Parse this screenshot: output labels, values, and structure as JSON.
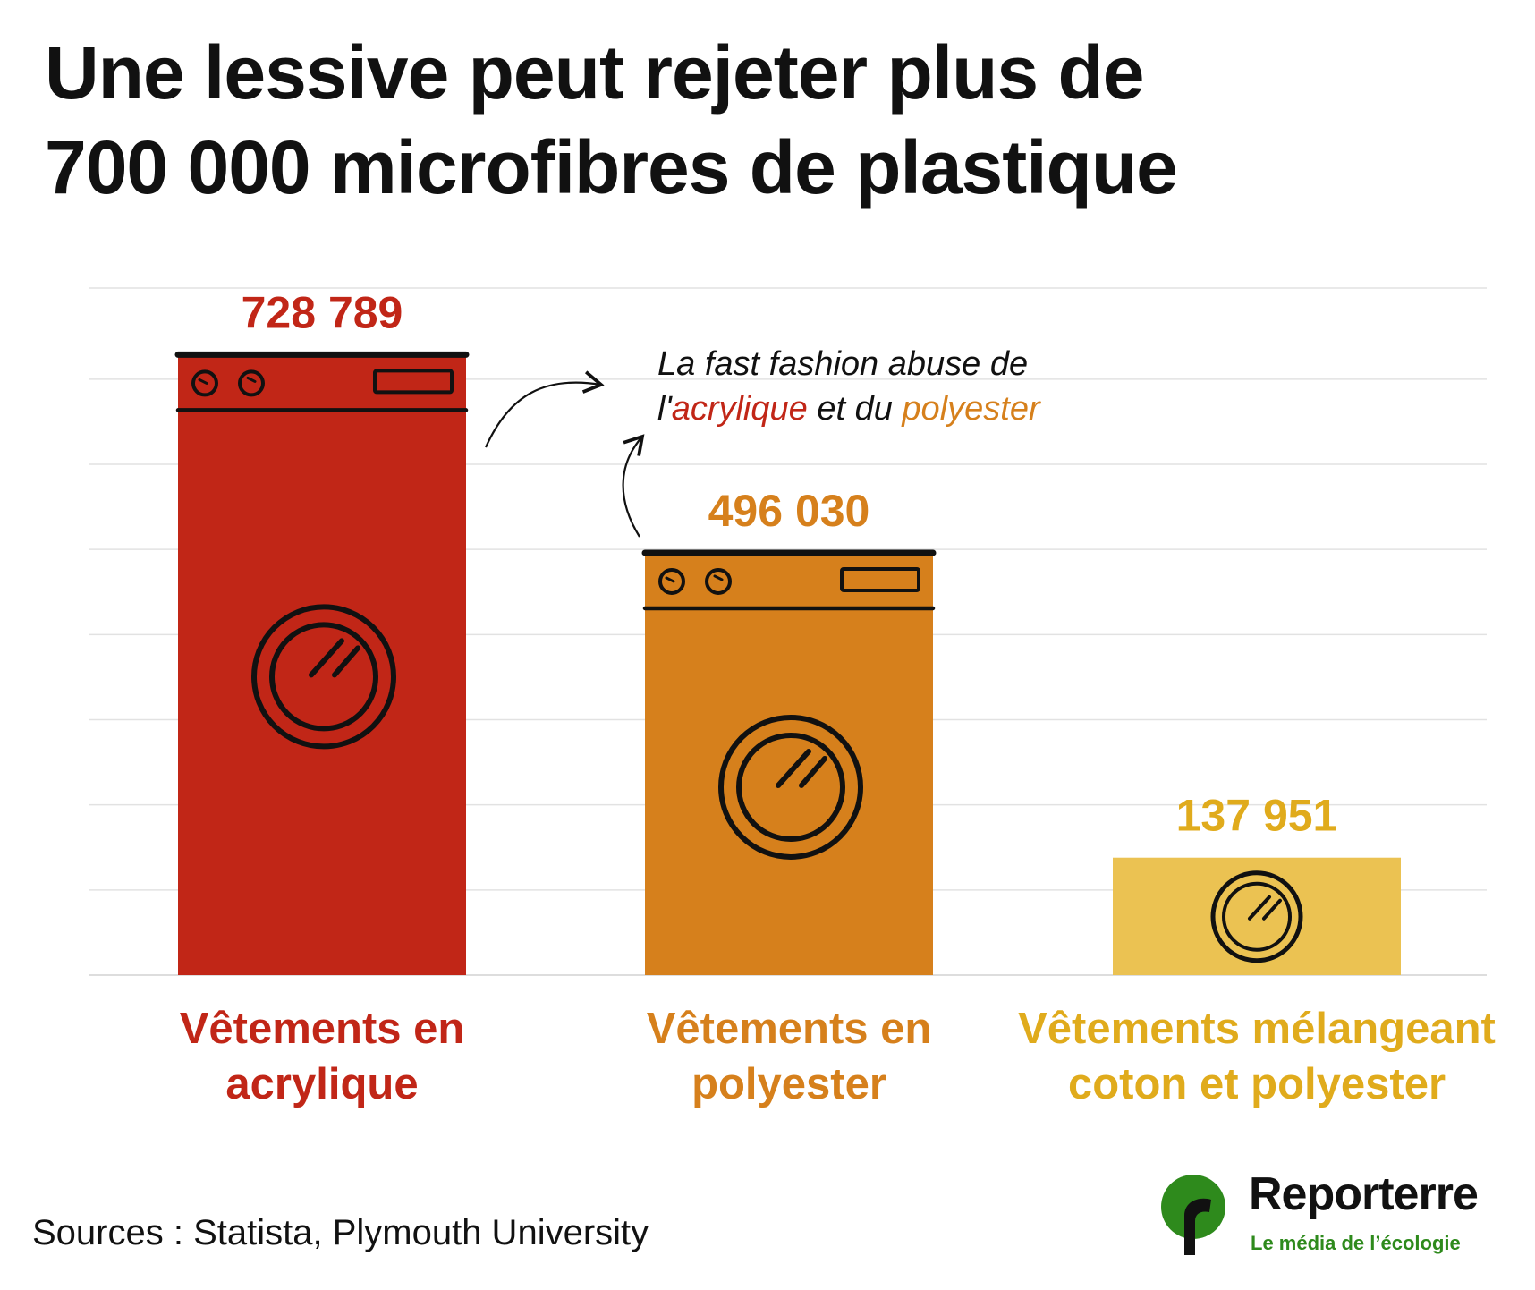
{
  "title": {
    "line1": "Une lessive peut rejeter plus de",
    "line2": "700 000 microfibres de plastique"
  },
  "annotation": {
    "line1": "La fast fashion abuse de",
    "prefix": "l'",
    "word1": "acrylique",
    "middle": " et du ",
    "word2": "polyester"
  },
  "chart_data": {
    "type": "bar",
    "categories": [
      [
        "Vêtements en",
        "acrylique"
      ],
      [
        "Vêtements en",
        "polyester"
      ],
      [
        "Vêtements mélangeant",
        "coton et polyester"
      ]
    ],
    "values": [
      728789,
      496030,
      137951
    ],
    "value_labels": [
      "728 789",
      "496 030",
      "137 951"
    ],
    "colors": [
      "#c12617",
      "#d6801c",
      "#ebc252"
    ],
    "label_colors": [
      "#c12617",
      "#d6801c",
      "#e0ab1c"
    ],
    "ylim": [
      0,
      800000
    ],
    "grid": true,
    "bar_icon": "washing-machine-icon"
  },
  "source": "Sources : Statista, Plymouth University",
  "logo": {
    "name": "Reporterre",
    "tagline": "Le média de l’écologie",
    "green": "#2e8a1c"
  }
}
